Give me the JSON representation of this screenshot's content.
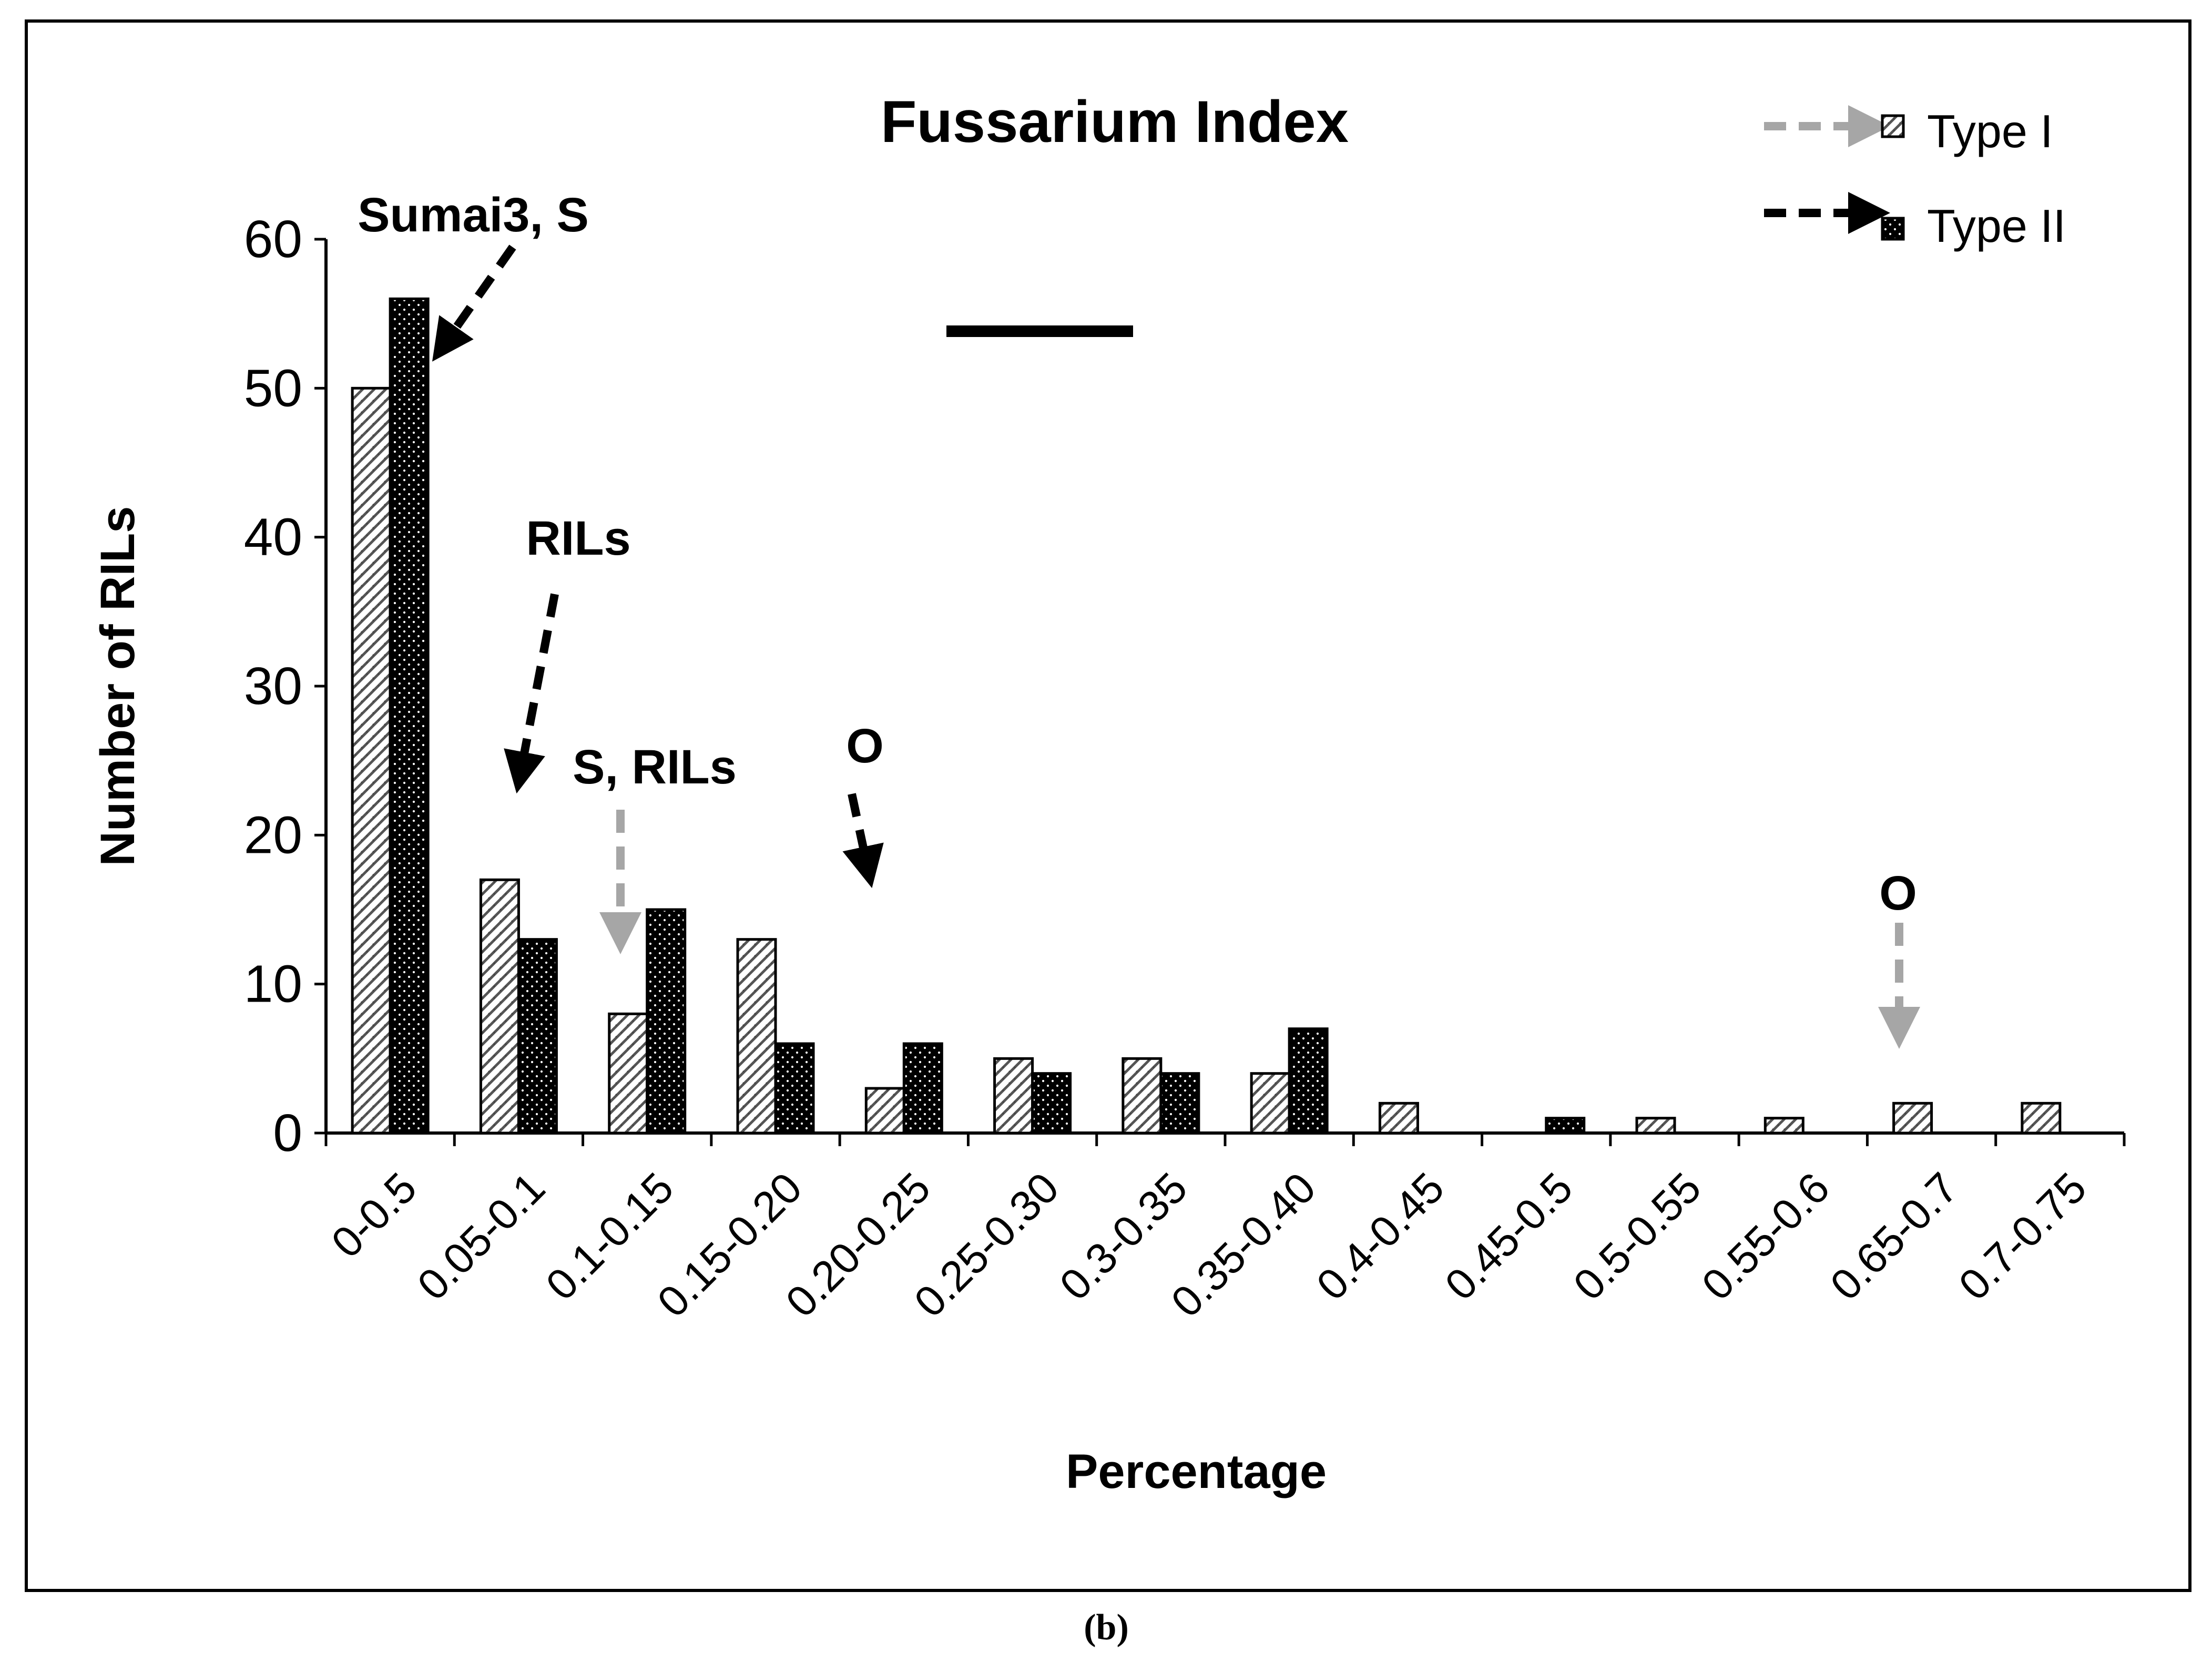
{
  "chart_data": {
    "type": "bar",
    "title": "Fussarium Index",
    "xlabel": "Percentage",
    "ylabel": "Number of RILs",
    "ylim": [
      0,
      60
    ],
    "yticks": [
      "0",
      "10",
      "20",
      "30",
      "40",
      "50",
      "60"
    ],
    "grid": false,
    "legend_position": "top-right",
    "categories": [
      "0-0.5",
      "0.05-0.1",
      "0.1-0.15",
      "0.15-0.20",
      "0.20-0.25",
      "0.25-0.30",
      "0.3-0.35",
      "0.35-0.40",
      "0.4-0.45",
      "0.45-0.5",
      "0.5-0.55",
      "0.55-0.6",
      "0.65-0.7",
      "0.7-0.75"
    ],
    "series": [
      {
        "name": "Type I",
        "values": [
          50,
          17,
          8,
          13,
          3,
          5,
          5,
          4,
          2,
          0,
          1,
          1,
          2,
          2
        ],
        "pattern": "hatched-light",
        "arrow_color": "#a6a6a6"
      },
      {
        "name": "Type II",
        "values": [
          56,
          13,
          15,
          6,
          6,
          4,
          4,
          7,
          0,
          1,
          0,
          0,
          0,
          0
        ],
        "pattern": "dotted-dark",
        "arrow_color": "#000000"
      }
    ],
    "annotations": [
      {
        "text": "Sumai3, S",
        "category": "0-0.5",
        "series": "Type II",
        "color": "#000000"
      },
      {
        "text": "RILs",
        "category": "0.05-0.1",
        "series": "Type II",
        "color": "#000000"
      },
      {
        "text": "S, RILs",
        "category": "0.1-0.15",
        "series": "Type I",
        "color": "#a6a6a6"
      },
      {
        "text": "O",
        "category": "0.20-0.25",
        "series": "Type II",
        "color": "#000000"
      },
      {
        "text": "O",
        "category": "0.65-0.7",
        "series": "Type I",
        "color": "#a6a6a6"
      }
    ]
  },
  "panel_label": "(b)"
}
